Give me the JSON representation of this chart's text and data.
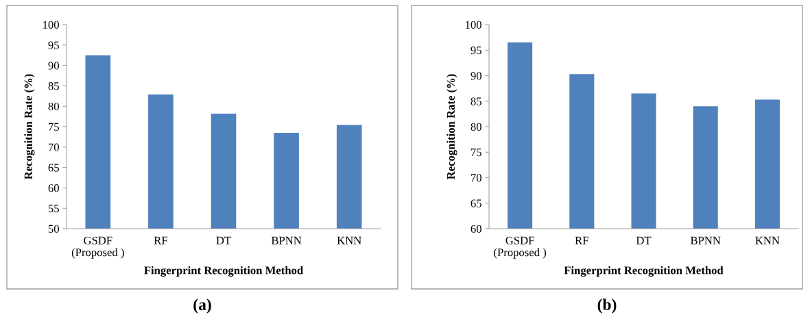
{
  "chart_data": [
    {
      "type": "bar",
      "categories": [
        "GSDF\n(Proposed )",
        "RF",
        "DT",
        "BPNN",
        "KNN"
      ],
      "values": [
        92.5,
        82.9,
        78.2,
        73.5,
        75.4
      ],
      "color": "#4f81bd",
      "xlabel": "Fingerprint Recognition Method",
      "ylabel": "Recognition Rate (%)",
      "ylim": [
        50,
        100
      ],
      "yticks": [
        50,
        55,
        60,
        65,
        70,
        75,
        80,
        85,
        90,
        95,
        100
      ],
      "grid": false,
      "annotations": [
        "(a)"
      ]
    },
    {
      "type": "bar",
      "categories": [
        "GSDF\n(Proposed )",
        "RF",
        "DT",
        "BPNN",
        "KNN"
      ],
      "values": [
        96.5,
        90.3,
        86.5,
        84.0,
        85.3
      ],
      "color": "#4f81bd",
      "xlabel": "Fingerprint Recognition Method",
      "ylabel": "Recognition Rate (%)",
      "ylim": [
        60,
        100
      ],
      "yticks": [
        60,
        65,
        70,
        75,
        80,
        85,
        90,
        95,
        100
      ],
      "grid": false,
      "annotations": [
        "(b)"
      ]
    }
  ]
}
